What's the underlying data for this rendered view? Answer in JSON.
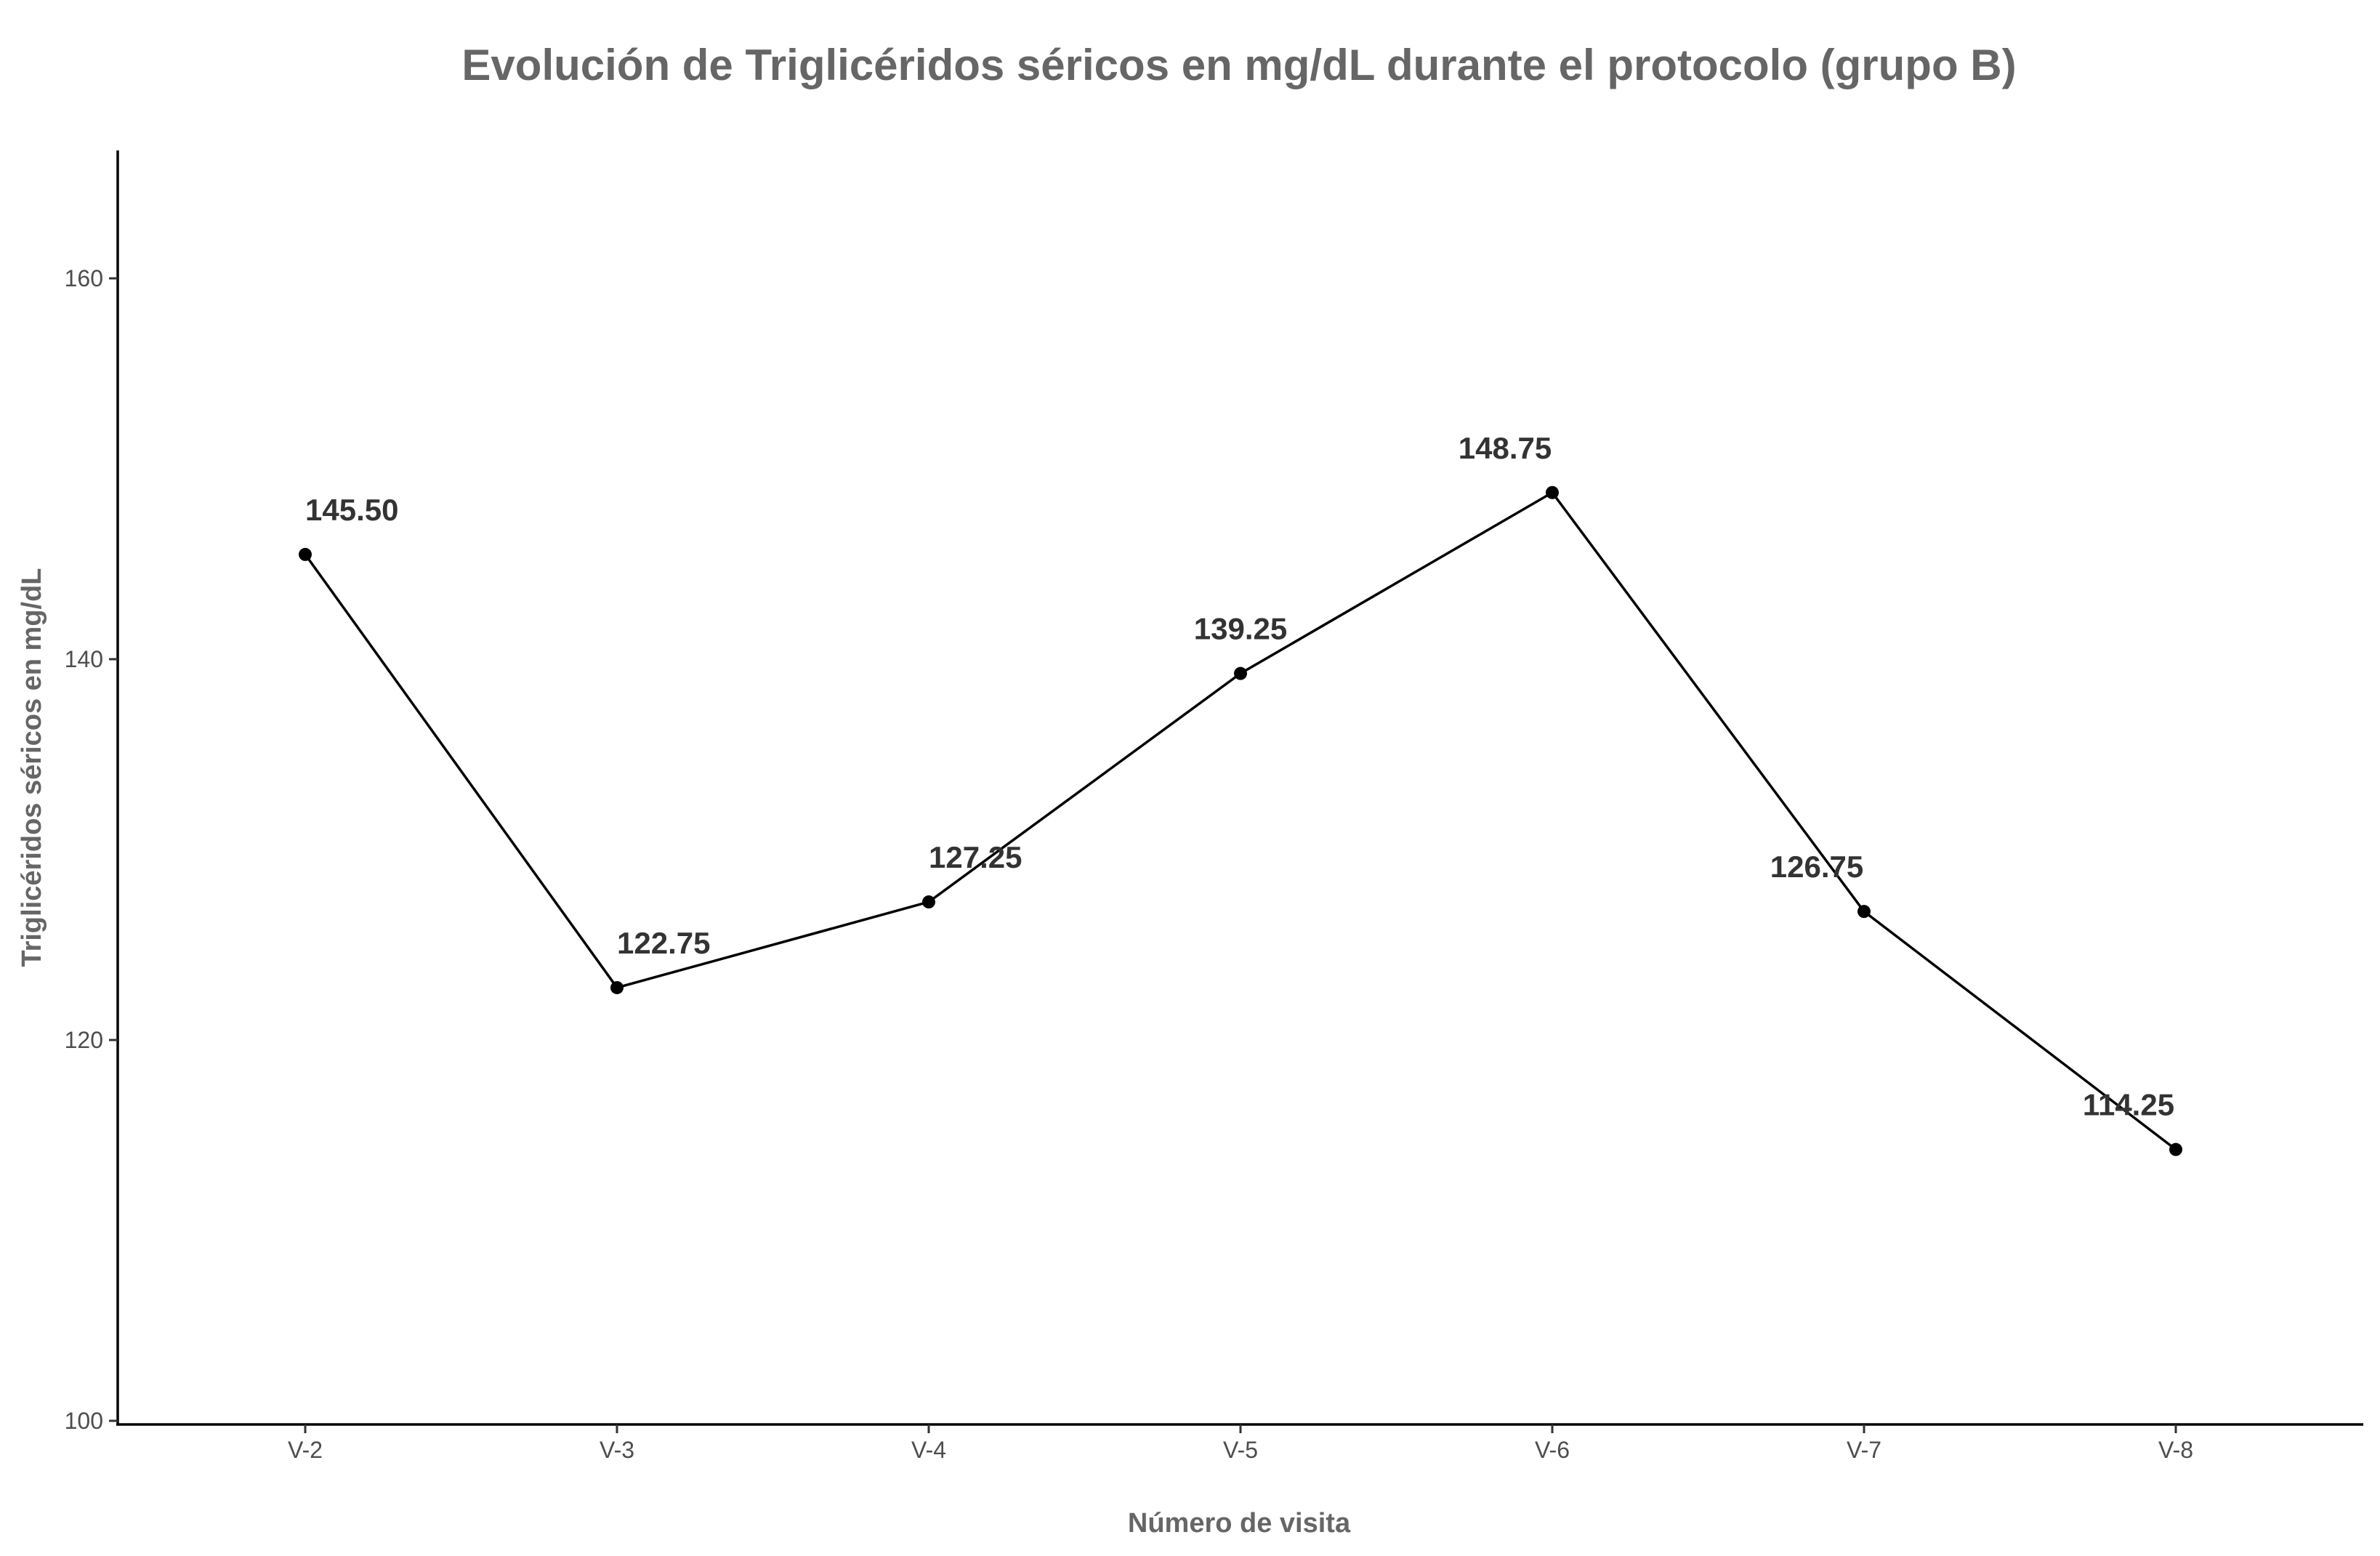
{
  "chart_data": {
    "type": "line",
    "title": "Evolución de Triglicéridos séricos en mg/dL durante el protocolo (grupo B)",
    "xlabel": "Número de visita",
    "ylabel": "Triglicéridos séricos en mg/dL",
    "categories": [
      "V-2",
      "V-3",
      "V-4",
      "V-5",
      "V-6",
      "V-7",
      "V-8"
    ],
    "values": [
      145.5,
      122.75,
      127.25,
      139.25,
      148.75,
      126.75,
      114.25
    ],
    "data_labels": [
      "145.50",
      "122.75",
      "127.25",
      "139.25",
      "148.75",
      "126.75",
      "114.25"
    ],
    "y_ticks": [
      100,
      120,
      140,
      160
    ],
    "y_tick_labels": [
      "100",
      "120",
      "140",
      "160"
    ],
    "ylim": [
      100,
      166.5
    ],
    "grid": false,
    "legend": "none",
    "line_color": "#000000"
  }
}
